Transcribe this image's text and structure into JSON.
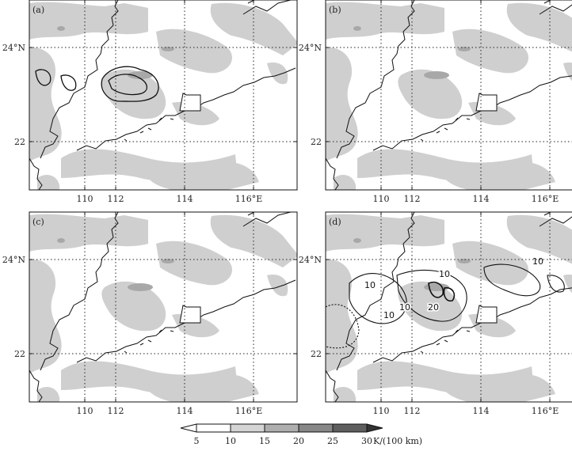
{
  "panels": [
    {
      "id": "a",
      "label": "(a)"
    },
    {
      "id": "b",
      "label": "(b)"
    },
    {
      "id": "c",
      "label": "(c)"
    },
    {
      "id": "d",
      "label": "(d)"
    }
  ],
  "axes": {
    "x_ticks": [
      "110",
      "112",
      "114",
      "116°E"
    ],
    "y_ticks": [
      "24°N",
      "22"
    ]
  },
  "contour_labels_d": [
    "10",
    "10",
    "10",
    "20",
    "10",
    "10"
  ],
  "colorbar": {
    "ticks": [
      "5",
      "10",
      "15",
      "20",
      "25",
      "30"
    ],
    "unit": "K/(100 km)",
    "colors": [
      "#ffffff",
      "#d4d4d4",
      "#aeaeae",
      "#878787",
      "#5e5e5e",
      "#333333"
    ]
  }
}
